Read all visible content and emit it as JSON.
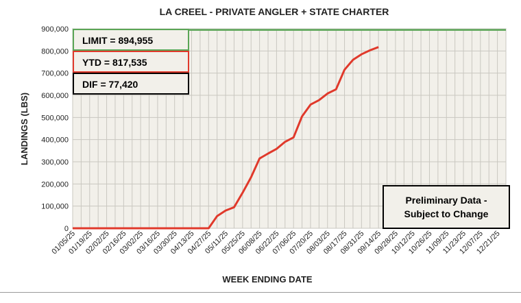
{
  "chart_data": {
    "type": "line",
    "title": "LA CREEL - PRIVATE ANGLER + STATE CHARTER",
    "xlabel": "WEEK ENDING DATE",
    "ylabel": "LANDINGS (LBS)",
    "ylim": [
      0,
      900000
    ],
    "yticks": [
      "0",
      "100,000",
      "200,000",
      "300,000",
      "400,000",
      "500,000",
      "600,000",
      "700,000",
      "800,000",
      "900,000"
    ],
    "x_tick_labels": [
      "01/05/25",
      "01/19/25",
      "02/02/25",
      "02/16/25",
      "03/02/25",
      "03/16/25",
      "03/30/25",
      "04/13/25",
      "04/27/25",
      "05/11/25",
      "05/25/25",
      "06/08/25",
      "06/22/25",
      "07/06/25",
      "07/20/25",
      "08/03/25",
      "08/17/25",
      "08/31/25",
      "09/14/25",
      "09/28/25",
      "10/12/25",
      "10/26/25",
      "11/09/25",
      "11/23/25",
      "12/07/25",
      "12/21/25"
    ],
    "weeks": [
      "01/05/25",
      "01/12/25",
      "01/19/25",
      "01/26/25",
      "02/02/25",
      "02/09/25",
      "02/16/25",
      "02/23/25",
      "03/02/25",
      "03/09/25",
      "03/16/25",
      "03/23/25",
      "03/30/25",
      "04/06/25",
      "04/13/25",
      "04/20/25",
      "04/27/25",
      "05/04/25",
      "05/11/25",
      "05/18/25",
      "05/25/25",
      "06/01/25",
      "06/08/25",
      "06/15/25",
      "06/22/25",
      "06/29/25",
      "07/06/25",
      "07/13/25",
      "07/20/25",
      "07/27/25",
      "08/03/25",
      "08/10/25",
      "08/17/25",
      "08/24/25",
      "08/31/25",
      "09/07/25",
      "09/14/25",
      "09/21/25",
      "09/28/25",
      "10/05/25",
      "10/12/25",
      "10/19/25",
      "10/26/25",
      "11/02/25",
      "11/09/25",
      "11/16/25",
      "11/23/25",
      "11/30/25",
      "12/07/25",
      "12/14/25",
      "12/21/25",
      "12/28/25"
    ],
    "grid": true,
    "series": [
      {
        "name": "YTD",
        "color": "#e0392b",
        "values": [
          0,
          0,
          0,
          0,
          0,
          0,
          0,
          0,
          0,
          0,
          0,
          0,
          0,
          0,
          0,
          0,
          0,
          55000,
          80000,
          95000,
          160000,
          230000,
          315000,
          337000,
          358000,
          390000,
          410000,
          505000,
          558000,
          578000,
          608000,
          627000,
          715000,
          760000,
          785000,
          803000,
          817535
        ]
      },
      {
        "name": "LIMIT",
        "color": "#5aa556",
        "values": [
          894955,
          894955,
          894955,
          894955,
          894955,
          894955,
          894955,
          894955,
          894955,
          894955,
          894955,
          894955,
          894955,
          894955,
          894955,
          894955,
          894955,
          894955,
          894955,
          894955,
          894955,
          894955,
          894955,
          894955,
          894955,
          894955,
          894955,
          894955,
          894955,
          894955,
          894955,
          894955,
          894955,
          894955,
          894955,
          894955,
          894955,
          894955,
          894955,
          894955,
          894955,
          894955,
          894955,
          894955,
          894955,
          894955,
          894955,
          894955,
          894955,
          894955,
          894955,
          894955
        ]
      }
    ]
  },
  "boxes": {
    "limit": "LIMIT = 894,955",
    "ytd": "YTD = 817,535",
    "dif": "DIF = 77,420",
    "note_line1": "Preliminary Data -",
    "note_line2": "Subject to Change"
  },
  "colors": {
    "plot_bg": "#f2f0ea",
    "grid": "#c9c7c0",
    "ytd_line": "#e0392b",
    "limit_line": "#5aa556"
  }
}
